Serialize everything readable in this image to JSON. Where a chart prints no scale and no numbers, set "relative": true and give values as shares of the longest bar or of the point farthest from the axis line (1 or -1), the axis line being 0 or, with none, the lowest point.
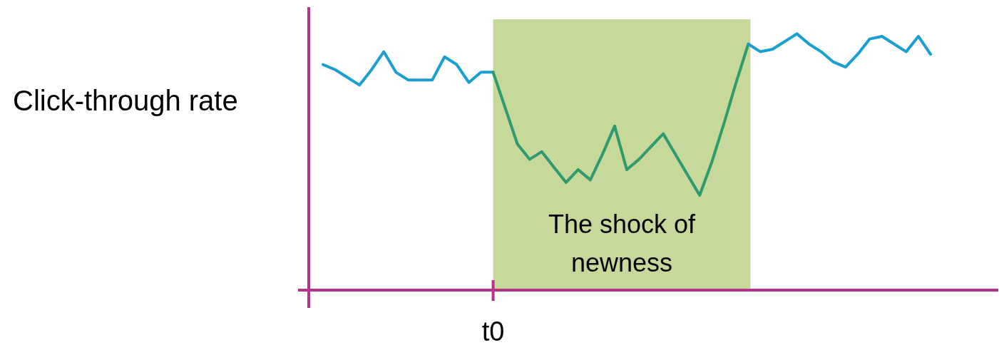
{
  "chart_data": {
    "type": "line",
    "relative": true,
    "ylabel": "Click-through rate",
    "categories": [
      null,
      null,
      null,
      null,
      null,
      null,
      null,
      null,
      null,
      null,
      null,
      null,
      null,
      null,
      null,
      null,
      null,
      null,
      null,
      null,
      null,
      null,
      null,
      null,
      null,
      null,
      null,
      null,
      null,
      null,
      null,
      null,
      null,
      null,
      null,
      null,
      null,
      null,
      null,
      null,
      null,
      null,
      null,
      null,
      null,
      null,
      null,
      null,
      null,
      null,
      null
    ],
    "series": [
      {
        "color": "#1a9fd0",
        "values": [
          0.88,
          0.86,
          0.83,
          0.8,
          0.86,
          0.93,
          0.85,
          0.82,
          0.82,
          0.82,
          0.91,
          0.88,
          0.81,
          0.85,
          0.85,
          null,
          null,
          null,
          null,
          null,
          null,
          null,
          null,
          null,
          null,
          null,
          null,
          null,
          null,
          null,
          null,
          null,
          null,
          null,
          null,
          null,
          null,
          null,
          null,
          null,
          null,
          null,
          null,
          null,
          null,
          null,
          null,
          null,
          null,
          null,
          null
        ]
      },
      {
        "color": "#2e9a6e",
        "values": [
          null,
          null,
          null,
          null,
          null,
          null,
          null,
          null,
          null,
          null,
          null,
          null,
          null,
          null,
          0.85,
          0.71,
          0.57,
          0.51,
          0.54,
          0.48,
          0.42,
          0.47,
          0.43,
          0.53,
          0.64,
          0.47,
          0.51,
          0.56,
          0.61,
          0.53,
          0.45,
          0.37,
          0.5,
          0.65,
          0.81,
          0.96,
          null,
          null,
          null,
          null,
          null,
          null,
          null,
          null,
          null,
          null,
          null,
          null,
          null,
          null,
          null
        ]
      },
      {
        "color": "#1a9fd0",
        "values": [
          null,
          null,
          null,
          null,
          null,
          null,
          null,
          null,
          null,
          null,
          null,
          null,
          null,
          null,
          null,
          null,
          null,
          null,
          null,
          null,
          null,
          null,
          null,
          null,
          null,
          null,
          null,
          null,
          null,
          null,
          null,
          null,
          null,
          null,
          null,
          0.96,
          0.93,
          0.94,
          0.97,
          1.0,
          0.96,
          0.93,
          0.89,
          0.87,
          0.92,
          0.98,
          0.99,
          0.96,
          0.93,
          0.99,
          0.92
        ]
      }
    ],
    "annotations": [
      "t0",
      "The shock of newness"
    ]
  }
}
